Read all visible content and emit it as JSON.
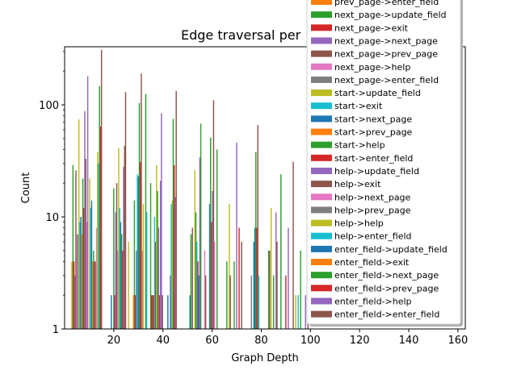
{
  "chart_data": {
    "type": "bar",
    "title": "Edge traversal per",
    "xlabel": "Graph Depth",
    "ylabel": "Count",
    "yscale": "log",
    "ylim": [
      1,
      330
    ],
    "xlim": [
      0,
      163
    ],
    "xticks": [
      20,
      40,
      60,
      80,
      100,
      120,
      140,
      160
    ],
    "yticks": [
      1,
      10,
      100
    ],
    "legend_location": "upper-right",
    "palette": [
      "#1f77b4",
      "#ff7f0e",
      "#2ca02c",
      "#d62728",
      "#9467bd",
      "#8c564b",
      "#e377c2",
      "#7f7f7f",
      "#bcbd22",
      "#17becf"
    ],
    "bars": [
      {
        "x": 3.0,
        "value": 4,
        "color": "#ff7f0e"
      },
      {
        "x": 3.4,
        "value": 29,
        "color": "#2ca02c"
      },
      {
        "x": 3.8,
        "value": 4,
        "color": "#d62728"
      },
      {
        "x": 4.2,
        "value": 3,
        "color": "#9467bd"
      },
      {
        "x": 4.6,
        "value": 26,
        "color": "#8c564b"
      },
      {
        "x": 5.0,
        "value": 7,
        "color": "#e377c2"
      },
      {
        "x": 5.4,
        "value": 7,
        "color": "#7f7f7f"
      },
      {
        "x": 5.8,
        "value": 74,
        "color": "#bcbd22"
      },
      {
        "x": 6.2,
        "value": 9,
        "color": "#17becf"
      },
      {
        "x": 6.6,
        "value": 10,
        "color": "#1f77b4"
      },
      {
        "x": 7.0,
        "value": 7,
        "color": "#ff7f0e"
      },
      {
        "x": 7.4,
        "value": 22,
        "color": "#2ca02c"
      },
      {
        "x": 7.8,
        "value": 12,
        "color": "#d62728"
      },
      {
        "x": 8.2,
        "value": 88,
        "color": "#9467bd"
      },
      {
        "x": 8.6,
        "value": 33,
        "color": "#8c564b"
      },
      {
        "x": 9.0,
        "value": 9,
        "color": "#e377c2"
      },
      {
        "x": 9.4,
        "value": 180,
        "color": "#9467bd"
      },
      {
        "x": 10.2,
        "value": 22,
        "color": "#bcbd22"
      },
      {
        "x": 10.6,
        "value": 12,
        "color": "#17becf"
      },
      {
        "x": 11.0,
        "value": 14,
        "color": "#1f77b4"
      },
      {
        "x": 11.4,
        "value": 4,
        "color": "#ff7f0e"
      },
      {
        "x": 11.8,
        "value": 5,
        "color": "#2ca02c"
      },
      {
        "x": 12.2,
        "value": 4,
        "color": "#d62728"
      },
      {
        "x": 12.6,
        "value": 4,
        "color": "#9467bd"
      },
      {
        "x": 13.0,
        "value": 8,
        "color": "#e377c2"
      },
      {
        "x": 13.4,
        "value": 38,
        "color": "#bcbd22"
      },
      {
        "x": 13.8,
        "value": 30,
        "color": "#17becf"
      },
      {
        "x": 14.2,
        "value": 147,
        "color": "#2ca02c"
      },
      {
        "x": 14.6,
        "value": 64,
        "color": "#d62728"
      },
      {
        "x": 15.0,
        "value": 310,
        "color": "#8c564b"
      },
      {
        "x": 19.0,
        "value": 2,
        "color": "#1f77b4"
      },
      {
        "x": 20.0,
        "value": 18,
        "color": "#2ca02c"
      },
      {
        "x": 20.4,
        "value": 2,
        "color": "#d62728"
      },
      {
        "x": 20.8,
        "value": 11,
        "color": "#9467bd"
      },
      {
        "x": 21.2,
        "value": 20,
        "color": "#8c564b"
      },
      {
        "x": 21.6,
        "value": 5,
        "color": "#e377c2"
      },
      {
        "x": 22.0,
        "value": 41,
        "color": "#bcbd22"
      },
      {
        "x": 22.4,
        "value": 12,
        "color": "#17becf"
      },
      {
        "x": 22.8,
        "value": 9,
        "color": "#1f77b4"
      },
      {
        "x": 23.2,
        "value": 7,
        "color": "#2ca02c"
      },
      {
        "x": 23.6,
        "value": 5,
        "color": "#d62728"
      },
      {
        "x": 24.0,
        "value": 28,
        "color": "#9467bd"
      },
      {
        "x": 24.4,
        "value": 43,
        "color": "#8c564b"
      },
      {
        "x": 24.8,
        "value": 130,
        "color": "#8c564b"
      },
      {
        "x": 26.0,
        "value": 6,
        "color": "#bcbd22"
      },
      {
        "x": 28.0,
        "value": 2,
        "color": "#ff7f0e"
      },
      {
        "x": 28.4,
        "value": 14,
        "color": "#2ca02c"
      },
      {
        "x": 28.8,
        "value": 2,
        "color": "#d62728"
      },
      {
        "x": 29.2,
        "value": 5,
        "color": "#9467bd"
      },
      {
        "x": 29.6,
        "value": 24,
        "color": "#17becf"
      },
      {
        "x": 30.0,
        "value": 23,
        "color": "#1f77b4"
      },
      {
        "x": 30.4,
        "value": 104,
        "color": "#2ca02c"
      },
      {
        "x": 30.8,
        "value": 31,
        "color": "#d62728"
      },
      {
        "x": 31.2,
        "value": 190,
        "color": "#8c564b"
      },
      {
        "x": 31.6,
        "value": 5,
        "color": "#e377c2"
      },
      {
        "x": 32.0,
        "value": 13,
        "color": "#bcbd22"
      },
      {
        "x": 33.0,
        "value": 125,
        "color": "#2ca02c"
      },
      {
        "x": 33.4,
        "value": 11,
        "color": "#17becf"
      },
      {
        "x": 35.0,
        "value": 20,
        "color": "#2ca02c"
      },
      {
        "x": 35.4,
        "value": 2,
        "color": "#d62728"
      },
      {
        "x": 35.8,
        "value": 2,
        "color": "#8c564b"
      },
      {
        "x": 36.2,
        "value": 2,
        "color": "#d62728"
      },
      {
        "x": 36.6,
        "value": 10,
        "color": "#17becf"
      },
      {
        "x": 37.0,
        "value": 6,
        "color": "#8c564b"
      },
      {
        "x": 37.4,
        "value": 29,
        "color": "#bcbd22"
      },
      {
        "x": 37.8,
        "value": 17,
        "color": "#2ca02c"
      },
      {
        "x": 38.2,
        "value": 8,
        "color": "#9467bd"
      },
      {
        "x": 38.6,
        "value": 2,
        "color": "#d62728"
      },
      {
        "x": 39.0,
        "value": 21,
        "color": "#9467bd"
      },
      {
        "x": 39.4,
        "value": 84,
        "color": "#9467bd"
      },
      {
        "x": 39.8,
        "value": 2,
        "color": "#8c564b"
      },
      {
        "x": 42.0,
        "value": 2,
        "color": "#1f77b4"
      },
      {
        "x": 43.0,
        "value": 3,
        "color": "#9467bd"
      },
      {
        "x": 43.4,
        "value": 13,
        "color": "#17becf"
      },
      {
        "x": 43.8,
        "value": 14,
        "color": "#bcbd22"
      },
      {
        "x": 44.2,
        "value": 75,
        "color": "#2ca02c"
      },
      {
        "x": 44.6,
        "value": 29,
        "color": "#d62728"
      },
      {
        "x": 45.0,
        "value": 15,
        "color": "#9467bd"
      },
      {
        "x": 45.4,
        "value": 133,
        "color": "#8c564b"
      },
      {
        "x": 51.0,
        "value": 2,
        "color": "#1f77b4"
      },
      {
        "x": 51.4,
        "value": 7,
        "color": "#2ca02c"
      },
      {
        "x": 52.0,
        "value": 8,
        "color": "#8c564b"
      },
      {
        "x": 53.0,
        "value": 26,
        "color": "#bcbd22"
      },
      {
        "x": 53.4,
        "value": 11,
        "color": "#2ca02c"
      },
      {
        "x": 53.8,
        "value": 6,
        "color": "#17becf"
      },
      {
        "x": 54.2,
        "value": 4,
        "color": "#d62728"
      },
      {
        "x": 54.6,
        "value": 3,
        "color": "#1f77b4"
      },
      {
        "x": 55.0,
        "value": 34,
        "color": "#9467bd"
      },
      {
        "x": 55.4,
        "value": 68,
        "color": "#2ca02c"
      },
      {
        "x": 57.0,
        "value": 5,
        "color": "#e377c2"
      },
      {
        "x": 57.4,
        "value": 3,
        "color": "#8c564b"
      },
      {
        "x": 59.0,
        "value": 13,
        "color": "#1f77b4"
      },
      {
        "x": 59.4,
        "value": 51,
        "color": "#2ca02c"
      },
      {
        "x": 59.8,
        "value": 9,
        "color": "#d62728"
      },
      {
        "x": 60.2,
        "value": 17,
        "color": "#9467bd"
      },
      {
        "x": 60.6,
        "value": 110,
        "color": "#8c564b"
      },
      {
        "x": 61.0,
        "value": 6,
        "color": "#e377c2"
      },
      {
        "x": 62.0,
        "value": 40,
        "color": "#2ca02c"
      },
      {
        "x": 66.0,
        "value": 4,
        "color": "#2ca02c"
      },
      {
        "x": 67.0,
        "value": 13,
        "color": "#bcbd22"
      },
      {
        "x": 67.4,
        "value": 3,
        "color": "#8c564b"
      },
      {
        "x": 69.0,
        "value": 4,
        "color": "#2ca02c"
      },
      {
        "x": 70.0,
        "value": 46,
        "color": "#9467bd"
      },
      {
        "x": 71.0,
        "value": 8,
        "color": "#d62728"
      },
      {
        "x": 72.0,
        "value": 6,
        "color": "#8c564b"
      },
      {
        "x": 76.0,
        "value": 3,
        "color": "#7f7f7f"
      },
      {
        "x": 77.0,
        "value": 6,
        "color": "#1f77b4"
      },
      {
        "x": 77.4,
        "value": 8,
        "color": "#1f77b4"
      },
      {
        "x": 77.8,
        "value": 38,
        "color": "#2ca02c"
      },
      {
        "x": 78.2,
        "value": 8,
        "color": "#d62728"
      },
      {
        "x": 78.6,
        "value": 66,
        "color": "#8c564b"
      },
      {
        "x": 79.0,
        "value": 3,
        "color": "#17becf"
      },
      {
        "x": 83.0,
        "value": 5,
        "color": "#2ca02c"
      },
      {
        "x": 83.4,
        "value": 5,
        "color": "#8c564b"
      },
      {
        "x": 84.0,
        "value": 12,
        "color": "#bcbd22"
      },
      {
        "x": 85.0,
        "value": 3,
        "color": "#2ca02c"
      },
      {
        "x": 86.0,
        "value": 11,
        "color": "#9467bd"
      },
      {
        "x": 86.4,
        "value": 6,
        "color": "#8c564b"
      },
      {
        "x": 88.0,
        "value": 24,
        "color": "#2ca02c"
      },
      {
        "x": 90.0,
        "value": 3,
        "color": "#d62728"
      },
      {
        "x": 91.0,
        "value": 8,
        "color": "#9467bd"
      },
      {
        "x": 93.0,
        "value": 31,
        "color": "#8c564b"
      },
      {
        "x": 94.0,
        "value": 2,
        "color": "#bcbd22"
      },
      {
        "x": 95.0,
        "value": 2,
        "color": "#17becf"
      },
      {
        "x": 96.0,
        "value": 5,
        "color": "#2ca02c"
      },
      {
        "x": 98.0,
        "value": 2,
        "color": "#9467bd"
      },
      {
        "x": 99.0,
        "value": 2,
        "color": "#8c564b"
      }
    ],
    "legend": [
      {
        "label": "prev_page->enter_field",
        "color": "#ff7f0e"
      },
      {
        "label": "next_page->update_field",
        "color": "#2ca02c"
      },
      {
        "label": "next_page->exit",
        "color": "#d62728"
      },
      {
        "label": "next_page->next_page",
        "color": "#9467bd"
      },
      {
        "label": "next_page->prev_page",
        "color": "#8c564b"
      },
      {
        "label": "next_page->help",
        "color": "#e377c2"
      },
      {
        "label": "next_page->enter_field",
        "color": "#7f7f7f"
      },
      {
        "label": "start->update_field",
        "color": "#bcbd22"
      },
      {
        "label": "start->exit",
        "color": "#17becf"
      },
      {
        "label": "start->next_page",
        "color": "#1f77b4"
      },
      {
        "label": "start->prev_page",
        "color": "#ff7f0e"
      },
      {
        "label": "start->help",
        "color": "#2ca02c"
      },
      {
        "label": "start->enter_field",
        "color": "#d62728"
      },
      {
        "label": "help->update_field",
        "color": "#9467bd"
      },
      {
        "label": "help->exit",
        "color": "#8c564b"
      },
      {
        "label": "help->next_page",
        "color": "#e377c2"
      },
      {
        "label": "help->prev_page",
        "color": "#7f7f7f"
      },
      {
        "label": "help->help",
        "color": "#bcbd22"
      },
      {
        "label": "help->enter_field",
        "color": "#17becf"
      },
      {
        "label": "enter_field->update_field",
        "color": "#1f77b4"
      },
      {
        "label": "enter_field->exit",
        "color": "#ff7f0e"
      },
      {
        "label": "enter_field->next_page",
        "color": "#2ca02c"
      },
      {
        "label": "enter_field->prev_page",
        "color": "#d62728"
      },
      {
        "label": "enter_field->help",
        "color": "#9467bd"
      },
      {
        "label": "enter_field->enter_field",
        "color": "#8c564b"
      }
    ]
  }
}
